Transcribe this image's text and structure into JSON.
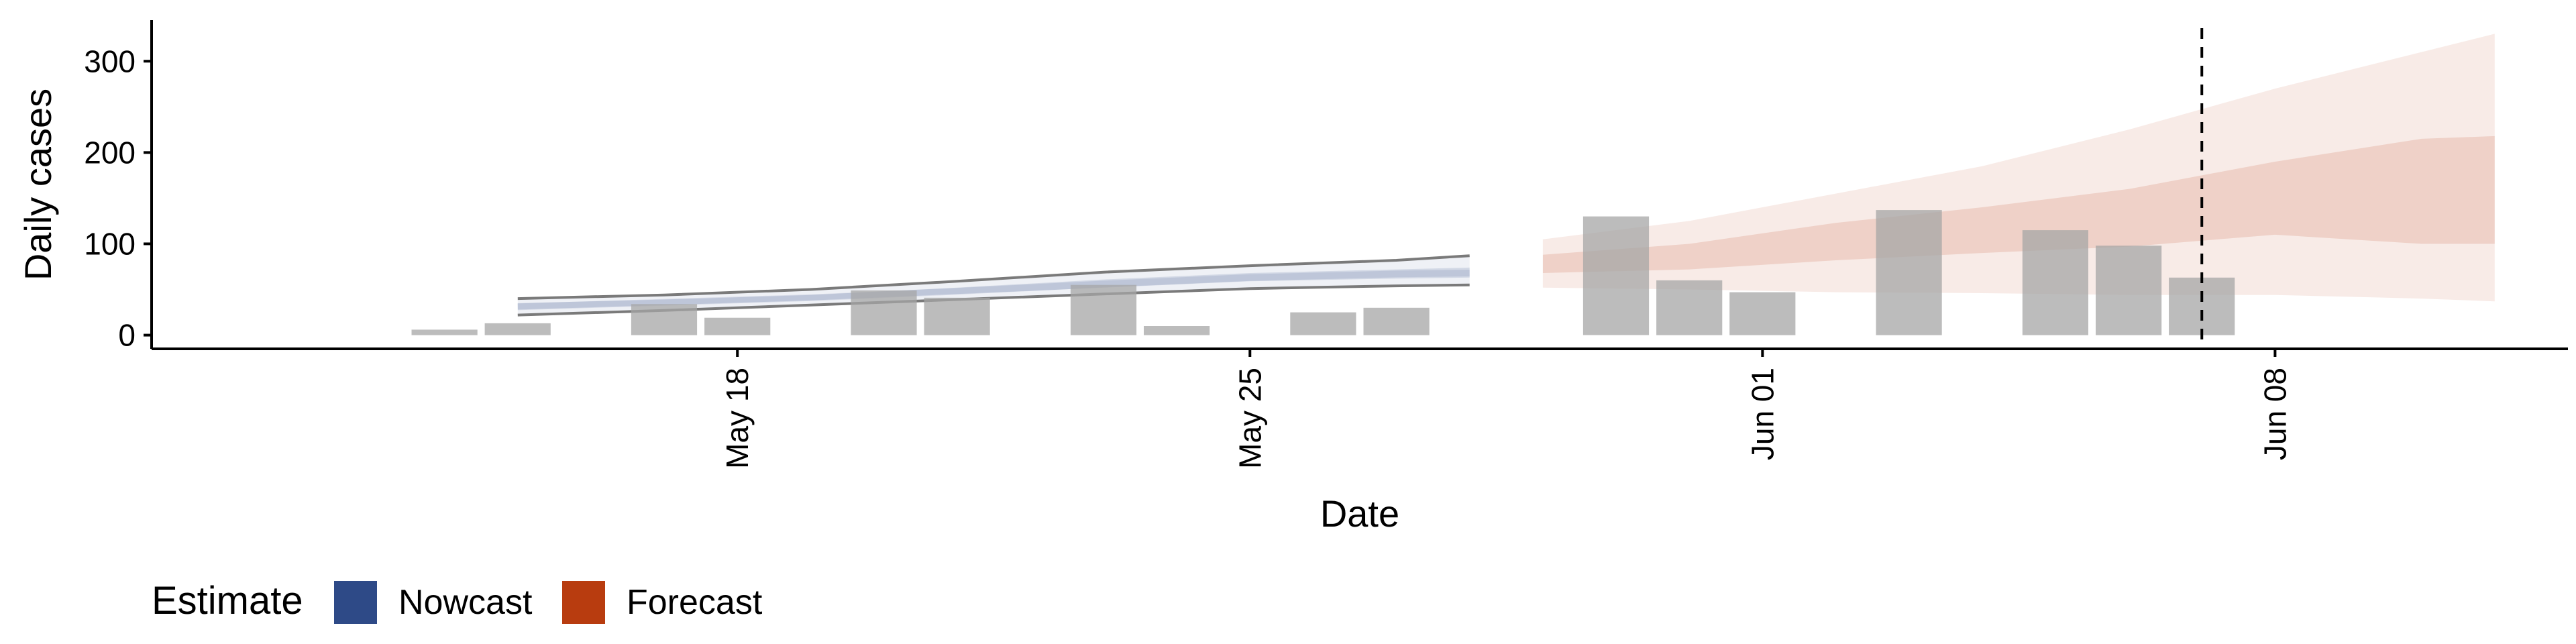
{
  "chart_data": {
    "type": "bar",
    "xlabel": "Date",
    "ylabel": "Daily cases",
    "x_tick_labels": [
      "May 18",
      "May 25",
      "Jun 01",
      "Jun 08"
    ],
    "x_tick_dates": [
      "2020-05-18",
      "2020-05-25",
      "2020-06-01",
      "2020-06-08"
    ],
    "y_ticks": [
      0,
      100,
      200,
      300
    ],
    "ylim": [
      -15,
      345
    ],
    "xlim": [
      "2020-05-10",
      "2020-06-12"
    ],
    "vline_date": "2020-06-07",
    "legend": {
      "title": "Estimate",
      "position": "bottom-left",
      "items": [
        {
          "label": "Nowcast",
          "color": "#2e4a87"
        },
        {
          "label": "Forecast",
          "color": "#b83c0f"
        }
      ]
    },
    "bars": {
      "color": "#a6a6a6",
      "dates": [
        "2020-05-14",
        "2020-05-15",
        "2020-05-17",
        "2020-05-18",
        "2020-05-20",
        "2020-05-21",
        "2020-05-23",
        "2020-05-24",
        "2020-05-26",
        "2020-05-27",
        "2020-05-30",
        "2020-05-31",
        "2020-06-01",
        "2020-06-03",
        "2020-06-05",
        "2020-06-06",
        "2020-06-07"
      ],
      "values": [
        6,
        13,
        34,
        19,
        49,
        41,
        55,
        10,
        25,
        30,
        130,
        60,
        47,
        137,
        115,
        98,
        63
      ]
    },
    "series": [
      {
        "name": "Nowcast",
        "color": "#2e4a87",
        "dates": [
          "2020-05-15",
          "2020-05-17",
          "2020-05-19",
          "2020-05-21",
          "2020-05-23",
          "2020-05-25",
          "2020-05-27",
          "2020-05-28"
        ],
        "outer_lower": [
          22,
          27,
          33,
          39,
          45,
          51,
          54,
          55
        ],
        "outer_upper": [
          40,
          44,
          50,
          59,
          69,
          76,
          82,
          87
        ],
        "inner_lower": [
          28,
          33,
          38,
          45,
          52,
          59,
          62,
          63
        ],
        "inner_upper": [
          35,
          39,
          44,
          52,
          61,
          68,
          72,
          74
        ],
        "median": [
          31,
          36,
          41,
          48,
          56,
          63,
          67,
          68
        ]
      },
      {
        "name": "Forecast",
        "color": "#b83c0f",
        "dates": [
          "2020-05-29",
          "2020-05-31",
          "2020-06-02",
          "2020-06-04",
          "2020-06-06",
          "2020-06-08",
          "2020-06-10",
          "2020-06-11"
        ],
        "outer_lower": [
          52,
          50,
          47,
          46,
          44,
          44,
          40,
          37
        ],
        "outer_upper": [
          105,
          125,
          155,
          185,
          225,
          270,
          310,
          330
        ],
        "inner_lower": [
          68,
          72,
          82,
          90,
          97,
          110,
          100,
          100
        ],
        "inner_upper": [
          88,
          100,
          123,
          140,
          160,
          190,
          215,
          218
        ]
      }
    ]
  }
}
